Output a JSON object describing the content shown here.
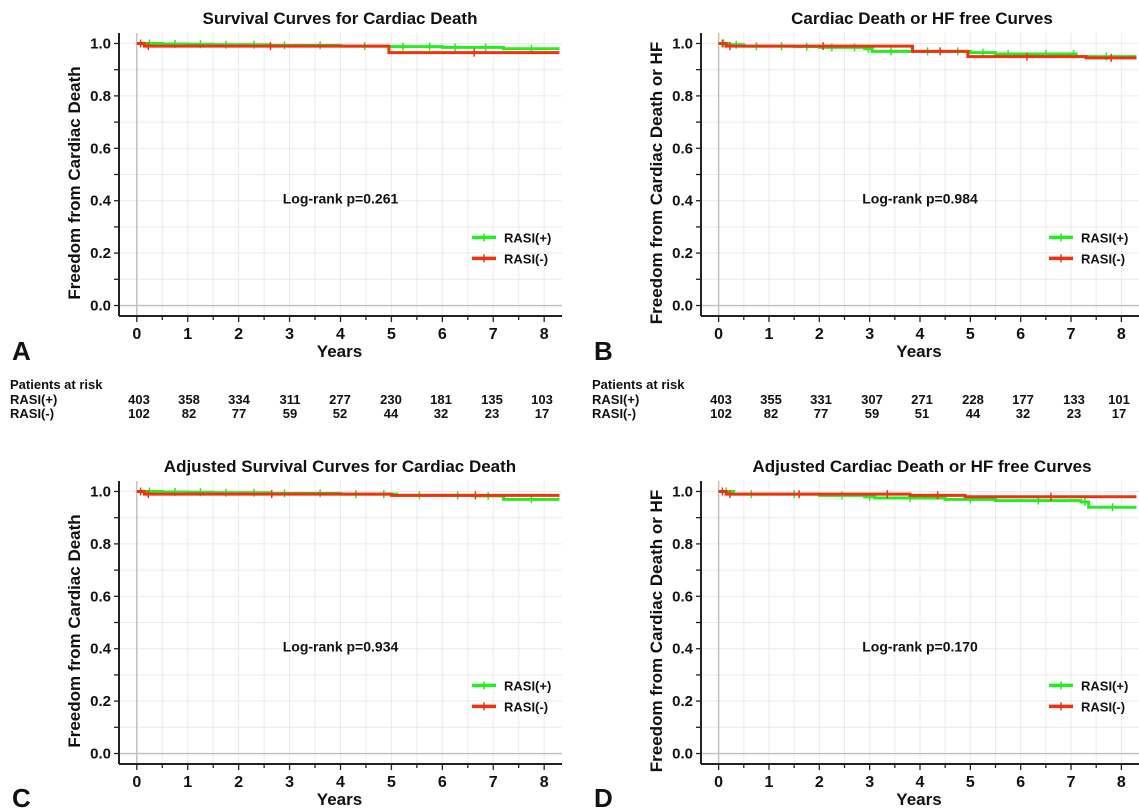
{
  "colors": {
    "rasi_plus": "#22ee22",
    "rasi_minus": "#ee3311",
    "panel_bg": "#ffffff",
    "grid": "#ebebeb",
    "axis": "#222222"
  },
  "chart_data": [
    {
      "panel_letter": "A",
      "type": "line",
      "subtype": "kaplan-meier step",
      "title": "Survival Curves for Cardiac Death",
      "xlabel": "Years",
      "ylabel": "Freedom from Cardiac Death",
      "xlim": [
        -0.35,
        8.35
      ],
      "ylim": [
        -0.04,
        1.04
      ],
      "xticks": [
        "0",
        "1",
        "2",
        "3",
        "4",
        "5",
        "6",
        "7",
        "8"
      ],
      "yticks": [
        "0.0",
        "0.2",
        "0.4",
        "0.6",
        "0.8",
        "1.0"
      ],
      "grid": true,
      "legend_position": "right",
      "annotation": "Log-rank p=0.261",
      "series": [
        {
          "name": "RASI(+)",
          "color": "#22ee22",
          "x": [
            0,
            0.5,
            1.0,
            1.5,
            2.0,
            2.6,
            3.2,
            4.0,
            4.95,
            5.5,
            6.0,
            6.5,
            7.2,
            8.3
          ],
          "y": [
            1.0,
            0.998,
            0.997,
            0.995,
            0.995,
            0.993,
            0.993,
            0.99,
            0.988,
            0.988,
            0.985,
            0.985,
            0.98,
            0.98
          ]
        },
        {
          "name": "RASI(-)",
          "color": "#ee3311",
          "x": [
            0,
            0.15,
            0.3,
            4.95,
            8.3
          ],
          "y": [
            1.0,
            0.99,
            0.99,
            0.965,
            0.965
          ]
        }
      ],
      "risk_table": {
        "header": "Patients at risk",
        "rows": [
          {
            "label": "RASI(+)",
            "values": [
              "403",
              "358",
              "334",
              "311",
              "277",
              "230",
              "181",
              "135",
              "103"
            ]
          },
          {
            "label": "RASI(-)",
            "values": [
              "102",
              "82",
              "77",
              "59",
              "52",
              "44",
              "32",
              "23",
              "17"
            ]
          }
        ]
      }
    },
    {
      "panel_letter": "B",
      "type": "line",
      "subtype": "kaplan-meier step",
      "title": "Cardiac Death or HF free Curves",
      "xlabel": "Years",
      "ylabel": "Freedom from Cardiac Death or HF",
      "xlim": [
        -0.35,
        8.35
      ],
      "ylim": [
        -0.04,
        1.04
      ],
      "xticks": [
        "0",
        "1",
        "2",
        "3",
        "4",
        "5",
        "6",
        "7",
        "8"
      ],
      "yticks": [
        "0.0",
        "0.2",
        "0.4",
        "0.6",
        "0.8",
        "1.0"
      ],
      "grid": true,
      "legend_position": "right",
      "annotation": "Log-rank p=0.984",
      "series": [
        {
          "name": "RASI(+)",
          "color": "#22ee22",
          "x": [
            0,
            0.2,
            0.5,
            1.0,
            1.5,
            2.0,
            2.5,
            2.9,
            3.05,
            3.8,
            4.5,
            5.0,
            5.5,
            6.0,
            7.0,
            7.1,
            8.3
          ],
          "y": [
            1.0,
            0.995,
            0.99,
            0.99,
            0.988,
            0.985,
            0.985,
            0.98,
            0.97,
            0.97,
            0.97,
            0.965,
            0.96,
            0.96,
            0.96,
            0.95,
            0.95
          ]
        },
        {
          "name": "RASI(-)",
          "color": "#ee3311",
          "x": [
            0,
            0.15,
            0.3,
            3.85,
            4.95,
            7.3,
            8.3
          ],
          "y": [
            1.0,
            0.99,
            0.99,
            0.97,
            0.95,
            0.945,
            0.945
          ]
        }
      ],
      "risk_table": {
        "header": "Patients at risk",
        "rows": [
          {
            "label": "RASI(+)",
            "values": [
              "403",
              "355",
              "331",
              "307",
              "271",
              "228",
              "177",
              "133",
              "101"
            ]
          },
          {
            "label": "RASI(-)",
            "values": [
              "102",
              "82",
              "77",
              "59",
              "51",
              "44",
              "32",
              "23",
              "17"
            ]
          }
        ]
      }
    },
    {
      "panel_letter": "C",
      "type": "line",
      "subtype": "kaplan-meier step",
      "title": "Adjusted Survival Curves for Cardiac Death",
      "xlabel": "Years",
      "ylabel": "Freedom from Cardiac Death",
      "xlim": [
        -0.35,
        8.35
      ],
      "ylim": [
        -0.04,
        1.04
      ],
      "xticks": [
        "0",
        "1",
        "2",
        "3",
        "4",
        "5",
        "6",
        "7",
        "8"
      ],
      "yticks": [
        "0.0",
        "0.2",
        "0.4",
        "0.6",
        "0.8",
        "1.0"
      ],
      "grid": true,
      "legend_position": "right",
      "annotation": "Log-rank p=0.934",
      "series": [
        {
          "name": "RASI(+)",
          "color": "#22ee22",
          "x": [
            0,
            0.5,
            1.0,
            1.5,
            2.0,
            2.6,
            3.2,
            4.0,
            4.6,
            5.1,
            6.0,
            6.6,
            7.2,
            8.3
          ],
          "y": [
            1.0,
            0.998,
            0.997,
            0.995,
            0.995,
            0.993,
            0.993,
            0.99,
            0.99,
            0.985,
            0.985,
            0.983,
            0.97,
            0.97
          ]
        },
        {
          "name": "RASI(-)",
          "color": "#ee3311",
          "x": [
            0,
            0.15,
            0.3,
            5.0,
            8.3
          ],
          "y": [
            1.0,
            0.99,
            0.99,
            0.985,
            0.985
          ]
        }
      ]
    },
    {
      "panel_letter": "D",
      "type": "line",
      "subtype": "kaplan-meier step",
      "title": "Adjusted Cardiac Death or HF free Curves",
      "xlabel": "Years",
      "ylabel": "Freedom from Cardiac Death or HF",
      "xlim": [
        -0.35,
        8.35
      ],
      "ylim": [
        -0.04,
        1.04
      ],
      "xticks": [
        "0",
        "1",
        "2",
        "3",
        "4",
        "5",
        "6",
        "7",
        "8"
      ],
      "yticks": [
        "0.0",
        "0.2",
        "0.4",
        "0.6",
        "0.8",
        "1.0"
      ],
      "grid": true,
      "legend_position": "right",
      "annotation": "Log-rank p=0.170",
      "series": [
        {
          "name": "RASI(+)",
          "color": "#22ee22",
          "x": [
            0,
            0.3,
            1.0,
            2.0,
            2.9,
            3.1,
            4.5,
            5.5,
            7.2,
            7.35,
            8.3
          ],
          "y": [
            1.0,
            0.99,
            0.99,
            0.985,
            0.98,
            0.975,
            0.97,
            0.965,
            0.96,
            0.94,
            0.94
          ]
        },
        {
          "name": "RASI(-)",
          "color": "#ee3311",
          "x": [
            0,
            0.15,
            0.3,
            2.9,
            3.8,
            4.9,
            8.3
          ],
          "y": [
            1.0,
            0.99,
            0.99,
            0.99,
            0.985,
            0.98,
            0.98
          ]
        }
      ]
    }
  ]
}
